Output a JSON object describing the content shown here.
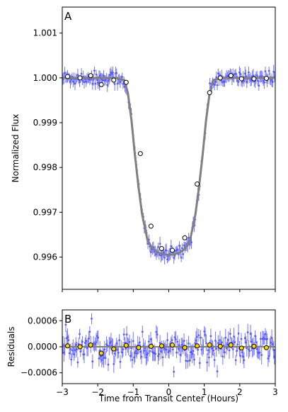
{
  "chart_data": [
    {
      "type": "scatter",
      "panel_label": "A",
      "xlabel": "",
      "ylabel": "Normalized Flux",
      "xlim": [
        -3,
        3
      ],
      "ylim": [
        0.99528,
        1.00158
      ],
      "xticks": [
        -3,
        -2,
        -1,
        0,
        1,
        2,
        3
      ],
      "yticks": [
        0.996,
        0.997,
        0.998,
        0.999,
        1.0,
        1.001
      ],
      "ytick_labels": [
        "0.996",
        "0.997",
        "0.998",
        "0.999",
        "1.000",
        "1.001"
      ],
      "show_x_tick_labels": false,
      "grid": false,
      "colors": {
        "raw": "#5a5aff",
        "model": "#808080",
        "binned_fill": "#ffffff"
      },
      "model": {
        "x": [
          -3.0,
          -1.5,
          -1.25,
          -1.15,
          -1.05,
          -0.95,
          -0.85,
          -0.75,
          -0.6,
          -0.45,
          -0.3,
          -0.15,
          0.0,
          0.15,
          0.3,
          0.45,
          0.6,
          0.75,
          0.85,
          0.95,
          1.05,
          1.15,
          1.25,
          1.5,
          3.0
        ],
        "y": [
          1.0,
          1.0,
          0.99995,
          0.99965,
          0.99905,
          0.99825,
          0.99755,
          0.99695,
          0.99638,
          0.99618,
          0.9961,
          0.99606,
          0.99605,
          0.99606,
          0.9961,
          0.99618,
          0.99638,
          0.99695,
          0.99755,
          0.99825,
          0.99905,
          0.99965,
          0.99995,
          1.0,
          1.0
        ]
      },
      "binned": {
        "x": [
          -2.85,
          -2.5,
          -2.2,
          -1.9,
          -1.55,
          -1.2,
          -0.8,
          -0.5,
          -0.2,
          0.1,
          0.45,
          0.8,
          1.15,
          1.45,
          1.75,
          2.05,
          2.4,
          2.75
        ],
        "y": [
          1.00003,
          1.0,
          1.00005,
          0.99985,
          0.99995,
          0.9999,
          0.99831,
          0.99669,
          0.99619,
          0.99615,
          0.99643,
          0.99763,
          0.99967,
          1.0,
          1.00005,
          0.99998,
          0.99998,
          0.99999
        ]
      }
    },
    {
      "type": "scatter",
      "panel_label": "B",
      "xlabel": "Time from Transit Center (Hours)",
      "ylabel": "Residuals",
      "xlim": [
        -3,
        3
      ],
      "ylim": [
        -0.00085,
        0.00085
      ],
      "xticks": [
        -3,
        -2,
        -1,
        0,
        1,
        2,
        3
      ],
      "xtick_labels": [
        "−3",
        "−2",
        "−1",
        "0",
        "1",
        "2",
        "3"
      ],
      "yticks": [
        -0.0006,
        0.0,
        0.0006
      ],
      "ytick_labels": [
        "−0.0006",
        "0.0000",
        "0.0006"
      ],
      "grid": false,
      "colors": {
        "raw": "#5a5aff",
        "model": "#808080",
        "binned_fill": "#ffd700"
      },
      "model": {
        "x": [
          -3,
          3
        ],
        "y": [
          0,
          0
        ]
      },
      "binned": {
        "x": [
          -2.85,
          -2.5,
          -2.2,
          -1.9,
          -1.55,
          -1.2,
          -0.85,
          -0.5,
          -0.2,
          0.1,
          0.45,
          0.8,
          1.15,
          1.45,
          1.75,
          2.05,
          2.4,
          2.75
        ],
        "y": [
          2e-05,
          0.0,
          4e-05,
          -0.00015,
          -5e-05,
          3e-05,
          -2e-05,
          1e-05,
          2e-05,
          4e-05,
          -2e-05,
          2e-05,
          4e-05,
          1e-05,
          4e-05,
          -3e-05,
          1e-05,
          -2e-05
        ]
      }
    }
  ]
}
